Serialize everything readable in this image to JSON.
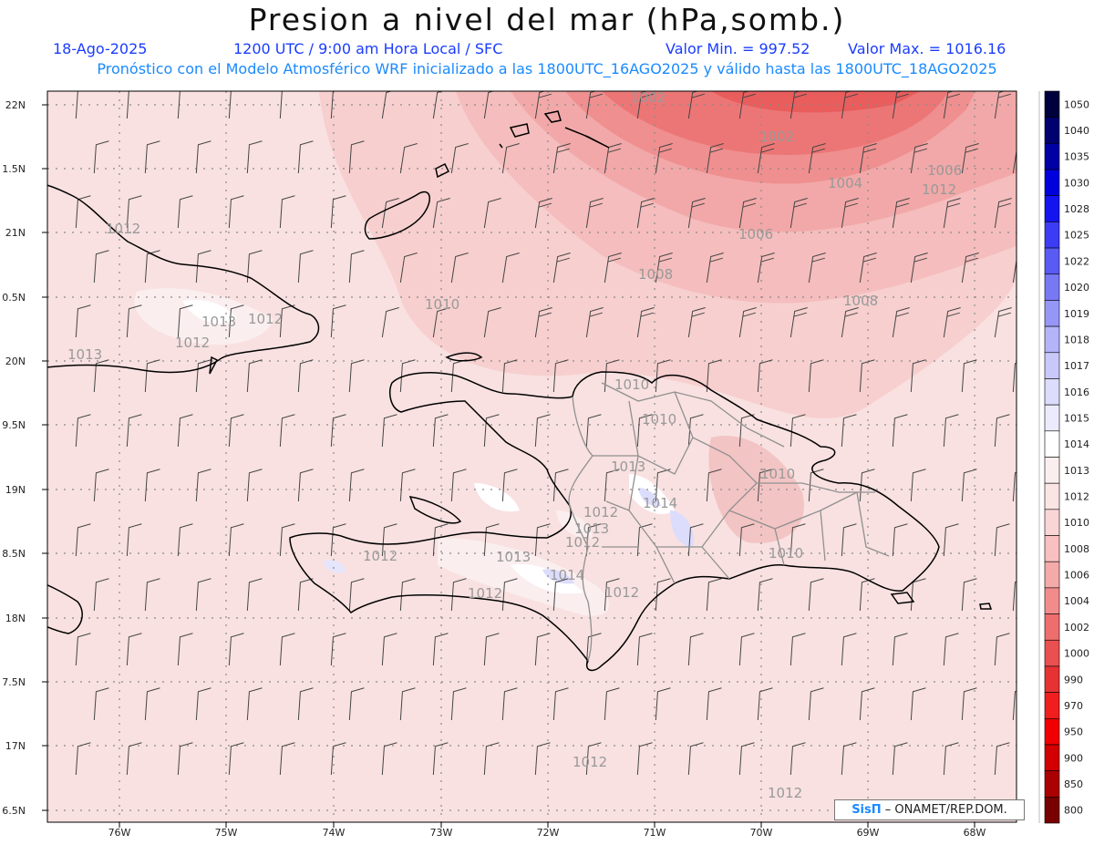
{
  "header": {
    "title": "Presion a nivel del mar (hPa,somb.)",
    "date": "18-Ago-2025",
    "time": "1200 UTC / 9:00 am Hora Local / SFC",
    "vmin": "Valor Min. = 997.52",
    "vmax": "Valor Max. = 1016.16",
    "model_line": "Pronóstico con el Modelo Atmosférico WRF inicializado a las 1800UTC_16AGO2025 y válido hasta las  1800UTC_18AGO2025"
  },
  "axes": {
    "lat_labels": [
      "22N",
      "1.5N",
      "21N",
      "0.5N",
      "20N",
      "9.5N",
      "19N",
      "8.5N",
      "18N",
      "7.5N",
      "17N",
      "6.5N"
    ],
    "lon_labels": [
      "76W",
      "75W",
      "74W",
      "73W",
      "72W",
      "71W",
      "70W",
      "69W",
      "68W"
    ]
  },
  "colorbar": {
    "labels": [
      "1050",
      "1040",
      "1035",
      "1030",
      "1028",
      "1025",
      "1022",
      "1020",
      "1019",
      "1018",
      "1017",
      "1016",
      "1015",
      "1014",
      "1013",
      "1012",
      "1010",
      "1008",
      "1006",
      "1004",
      "1002",
      "1000",
      "990",
      "970",
      "950",
      "900",
      "850",
      "800"
    ],
    "colors": [
      "#00003c",
      "#00006e",
      "#0000a5",
      "#0000dc",
      "#1414f0",
      "#3c3cf5",
      "#5a5af5",
      "#7878f5",
      "#9696f7",
      "#b4b4f8",
      "#c8c8fa",
      "#dcdcfc",
      "#ebebfd",
      "#ffffff",
      "#fbeeee",
      "#fbe4e4",
      "#fad5d5",
      "#f8c0c0",
      "#f5aaaa",
      "#f28c8c",
      "#ee6e6e",
      "#ea5050",
      "#e63232",
      "#f01e1e",
      "#f00000",
      "#d20000",
      "#aa0000",
      "#780000"
    ]
  },
  "contours": [
    {
      "label": "1002"
    },
    {
      "label": "1002"
    },
    {
      "label": "1004"
    },
    {
      "label": "1006"
    },
    {
      "label": "1006"
    },
    {
      "label": "1008"
    },
    {
      "label": "1008"
    },
    {
      "label": "1010"
    },
    {
      "label": "1010"
    },
    {
      "label": "1010"
    },
    {
      "label": "1010"
    },
    {
      "label": "1010"
    },
    {
      "label": "1012"
    },
    {
      "label": "1012"
    },
    {
      "label": "1012"
    },
    {
      "label": "1012"
    },
    {
      "label": "1012"
    },
    {
      "label": "1012"
    },
    {
      "label": "1012"
    },
    {
      "label": "1012"
    },
    {
      "label": "1012"
    },
    {
      "label": "1012"
    },
    {
      "label": "1013"
    },
    {
      "label": "1013"
    },
    {
      "label": "1013"
    },
    {
      "label": "1013"
    },
    {
      "label": "1013"
    },
    {
      "label": "1014"
    },
    {
      "label": "1014"
    },
    {
      "label": "1012"
    }
  ],
  "credit": {
    "logo": "SisΠ",
    "text": "– ONAMET/REP.DOM."
  }
}
